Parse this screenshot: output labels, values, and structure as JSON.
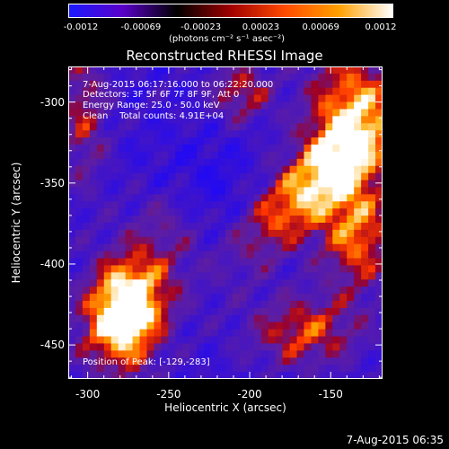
{
  "colorbar": {
    "ticks": [
      "-0.0012",
      "-0.00069",
      "-0.00023",
      "0.00023",
      "0.00069",
      "0.0012"
    ],
    "units": "(photons cm⁻² s⁻¹ asec⁻²)",
    "colors": [
      "#1a1aff",
      "#5a00c8",
      "#000000",
      "#a00000",
      "#ff4a00",
      "#ffa000",
      "#ffffff"
    ]
  },
  "annotations": {
    "time_range": "7-Aug-2015 06:17:16.000 to 06:22:20.000",
    "detectors": "Detectors: 3F 5F 6F 7F 8F 9F, Att 0",
    "energy": "Energy Range: 25.0 - 50.0 keV",
    "clean": "Clean    Total counts: 4.91E+04",
    "peak": "Position of Peak: [-129,-283]"
  },
  "footer": "7-Aug-2015 06:35",
  "chart_data": {
    "type": "heatmap",
    "title": "Reconstructed RHESSI Image",
    "xlabel": "Heliocentric X (arcsec)",
    "ylabel": "Heliocentric Y (arcsec)",
    "xlim": [
      -312,
      -118
    ],
    "ylim": [
      -471,
      -278
    ],
    "x_ticks": [
      "-300",
      "-250",
      "-200",
      "-150"
    ],
    "y_ticks": [
      "-300",
      "-350",
      "-400",
      "-450"
    ],
    "x_tick_values": [
      -300,
      -250,
      -200,
      -150
    ],
    "y_tick_values": [
      -300,
      -350,
      -400,
      -450
    ],
    "zlim": [
      -0.0012,
      0.0012
    ],
    "peak_position": [
      -129,
      -283
    ]
  }
}
